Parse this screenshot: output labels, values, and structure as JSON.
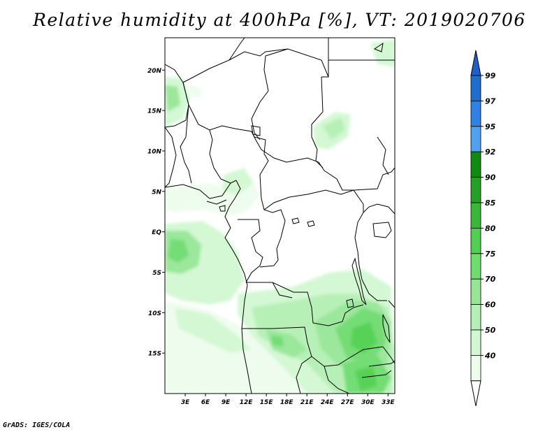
{
  "title": "Relative humidity at 400hPa [%], VT: 2019020706",
  "footer": "GrADS: IGES/COLA",
  "map": {
    "lat_range": [
      -20,
      24
    ],
    "lon_range": [
      0,
      34
    ],
    "lat_ticks": [
      {
        "value": 20,
        "label": "20N"
      },
      {
        "value": 15,
        "label": "15N"
      },
      {
        "value": 10,
        "label": "10N"
      },
      {
        "value": 5,
        "label": "5N"
      },
      {
        "value": 0,
        "label": "EQ"
      },
      {
        "value": -5,
        "label": "5S"
      },
      {
        "value": -10,
        "label": "10S"
      },
      {
        "value": -15,
        "label": "15S"
      }
    ],
    "lon_ticks": [
      {
        "value": 3,
        "label": "3E"
      },
      {
        "value": 6,
        "label": "6E"
      },
      {
        "value": 9,
        "label": "9E"
      },
      {
        "value": 12,
        "label": "12E"
      },
      {
        "value": 15,
        "label": "15E"
      },
      {
        "value": 18,
        "label": "18E"
      },
      {
        "value": 21,
        "label": "21E"
      },
      {
        "value": 24,
        "label": "24E"
      },
      {
        "value": 27,
        "label": "27E"
      },
      {
        "value": 30,
        "label": "30E"
      },
      {
        "value": 33,
        "label": "33E"
      }
    ]
  },
  "colorbar": {
    "levels": [
      "99",
      "97",
      "95",
      "92",
      "90",
      "85",
      "80",
      "75",
      "70",
      "60",
      "50",
      "40"
    ],
    "colors": [
      "#1e6ed2",
      "#2e82e6",
      "#50a0f0",
      "#0f8c0f",
      "#24a024",
      "#38b838",
      "#50d050",
      "#6edc6e",
      "#96e696",
      "#b4f0b4",
      "#d2f8d2",
      "#eefcee"
    ],
    "top_color": "#1f5fc8",
    "bottom_color": "#ffffff"
  },
  "colors": {
    "hum_40": "#eefcee",
    "hum_50": "#d2f8d2",
    "hum_60": "#b4f0b4",
    "hum_70": "#96e696",
    "hum_75": "#6edc6e",
    "hum_80": "#50d050"
  }
}
